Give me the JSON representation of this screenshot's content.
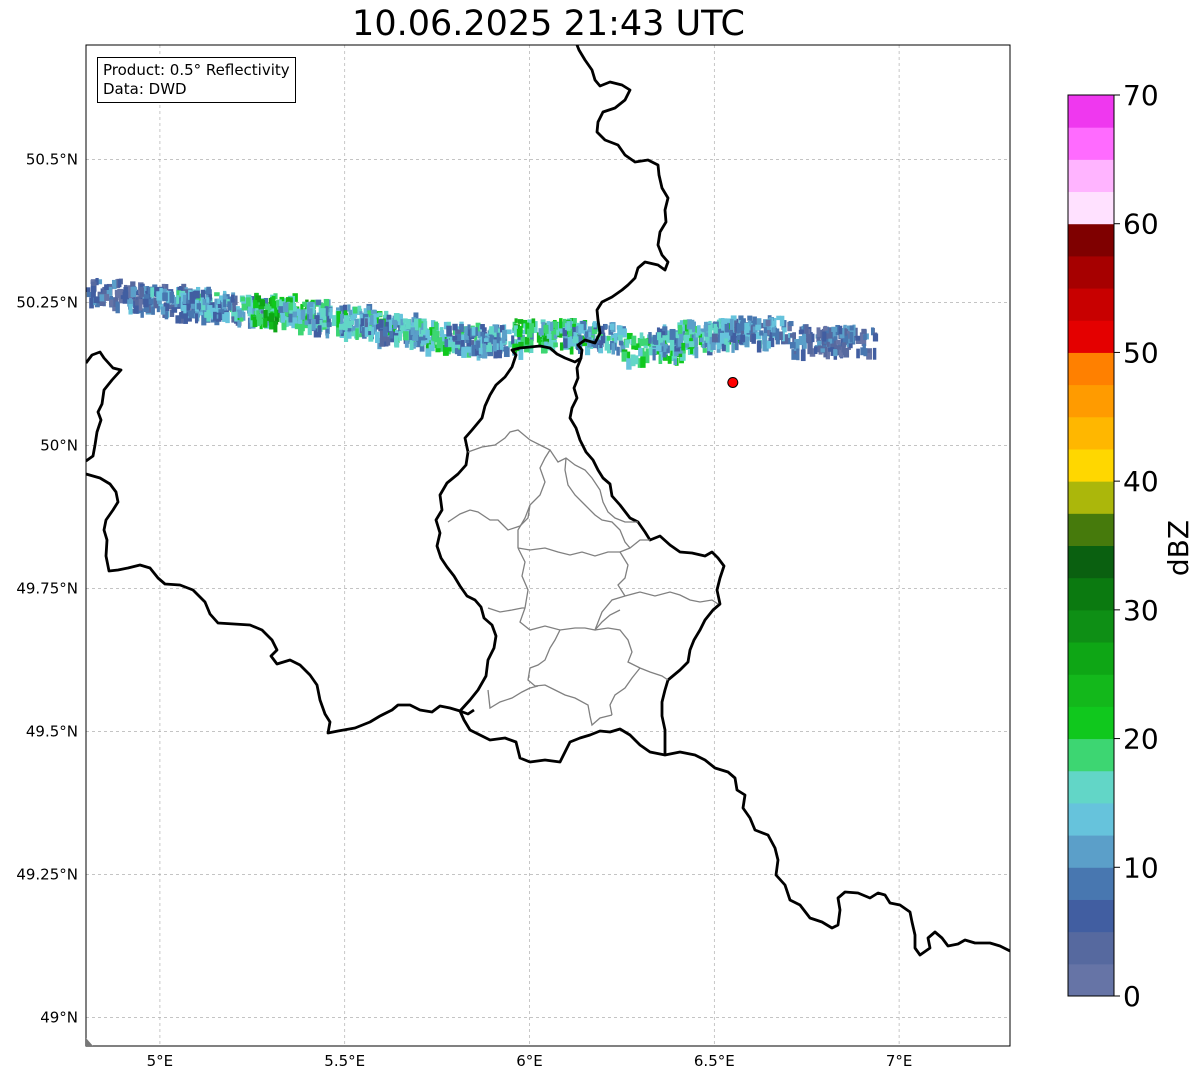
{
  "title": "10.06.2025 21:43 UTC",
  "info": {
    "product": "Product: 0.5° Reflectivity",
    "data": "Data: DWD"
  },
  "map": {
    "extent": {
      "lon_min": 4.8,
      "lon_max": 7.3,
      "lat_min": 48.95,
      "lat_max": 50.7
    },
    "lon_ticks": [
      {
        "value": 5.0,
        "label": "5°E"
      },
      {
        "value": 5.5,
        "label": "5.5°E"
      },
      {
        "value": 6.0,
        "label": "6°E"
      },
      {
        "value": 6.5,
        "label": "6.5°E"
      },
      {
        "value": 7.0,
        "label": "7°E"
      }
    ],
    "lat_ticks": [
      {
        "value": 50.5,
        "label": "50.5°N"
      },
      {
        "value": 50.25,
        "label": "50.25°N"
      },
      {
        "value": 50.0,
        "label": "50°N"
      },
      {
        "value": 49.75,
        "label": "49.75°N"
      },
      {
        "value": 49.5,
        "label": "49.5°N"
      },
      {
        "value": 49.25,
        "label": "49.25°N"
      },
      {
        "value": 49.0,
        "label": "49°N"
      }
    ],
    "radar_marker": {
      "lon": 6.55,
      "lat": 50.11,
      "color": "#ff0000"
    },
    "echo_band": [
      {
        "lon": 4.88,
        "lat": 50.27,
        "dbz": 6
      },
      {
        "lon": 4.98,
        "lat": 50.26,
        "dbz": 8
      },
      {
        "lon": 5.05,
        "lat": 50.255,
        "dbz": 10
      },
      {
        "lon": 5.12,
        "lat": 50.25,
        "dbz": 12
      },
      {
        "lon": 5.2,
        "lat": 50.245,
        "dbz": 10
      },
      {
        "lon": 5.28,
        "lat": 50.245,
        "dbz": 16
      },
      {
        "lon": 5.33,
        "lat": 50.24,
        "dbz": 22
      },
      {
        "lon": 5.4,
        "lat": 50.235,
        "dbz": 14
      },
      {
        "lon": 5.48,
        "lat": 50.225,
        "dbz": 12
      },
      {
        "lon": 5.55,
        "lat": 50.22,
        "dbz": 16
      },
      {
        "lon": 5.62,
        "lat": 50.21,
        "dbz": 10
      },
      {
        "lon": 5.7,
        "lat": 50.2,
        "dbz": 14
      },
      {
        "lon": 5.78,
        "lat": 50.195,
        "dbz": 18
      },
      {
        "lon": 5.85,
        "lat": 50.19,
        "dbz": 10
      },
      {
        "lon": 5.92,
        "lat": 50.19,
        "dbz": 12
      },
      {
        "lon": 6.03,
        "lat": 50.2,
        "dbz": 20
      },
      {
        "lon": 6.1,
        "lat": 50.2,
        "dbz": 16
      },
      {
        "lon": 6.17,
        "lat": 50.195,
        "dbz": 12
      },
      {
        "lon": 6.33,
        "lat": 50.175,
        "dbz": 18
      },
      {
        "lon": 6.4,
        "lat": 50.19,
        "dbz": 12
      },
      {
        "lon": 6.48,
        "lat": 50.2,
        "dbz": 16
      },
      {
        "lon": 6.57,
        "lat": 50.205,
        "dbz": 10
      },
      {
        "lon": 6.62,
        "lat": 50.205,
        "dbz": 8
      },
      {
        "lon": 6.78,
        "lat": 50.19,
        "dbz": 6
      },
      {
        "lon": 6.85,
        "lat": 50.19,
        "dbz": 6
      }
    ]
  },
  "colorbar": {
    "label": "dBZ",
    "min": 0,
    "max": 70,
    "ticks": [
      {
        "value": 0,
        "label": "0"
      },
      {
        "value": 10,
        "label": "10"
      },
      {
        "value": 20,
        "label": "20"
      },
      {
        "value": 30,
        "label": "30"
      },
      {
        "value": 40,
        "label": "40"
      },
      {
        "value": 50,
        "label": "50"
      },
      {
        "value": 60,
        "label": "60"
      },
      {
        "value": 70,
        "label": "70"
      }
    ],
    "colors": [
      "#6674a6",
      "#56699f",
      "#415ea1",
      "#4877b0",
      "#5b9fc9",
      "#66c3dc",
      "#62d6c7",
      "#3dd672",
      "#10c81d",
      "#13b81b",
      "#0ea615",
      "#0e8f15",
      "#0b7a10",
      "#0a6010",
      "#467a0c",
      "#abb70b",
      "#ffd700",
      "#ffb700",
      "#ff9b00",
      "#ff8000",
      "#e40000",
      "#c80000",
      "#a60000",
      "#7f0000",
      "#ffe1ff",
      "#ffb4ff",
      "#ff6bff",
      "#ef38ef"
    ]
  }
}
